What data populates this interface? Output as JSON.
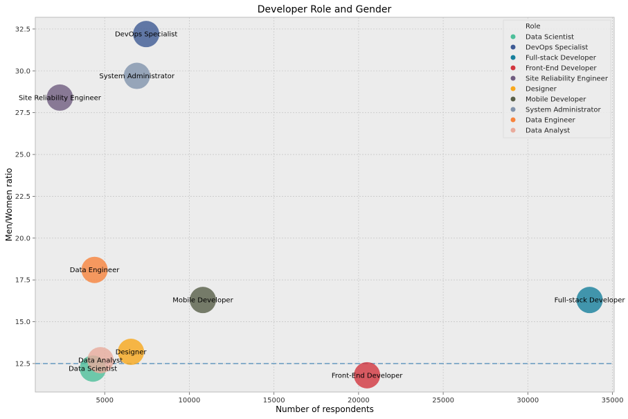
{
  "chart_data": {
    "type": "scatter",
    "title": "Developer Role and Gender",
    "xlabel": "Number of respondents",
    "ylabel": "Men/Women ratio",
    "xlim": [
      900,
      35100
    ],
    "ylim": [
      10.8,
      33.2
    ],
    "xticks": [
      5000,
      10000,
      15000,
      20000,
      25000,
      30000,
      35000
    ],
    "yticks": [
      12.5,
      15.0,
      17.5,
      20.0,
      22.5,
      25.0,
      27.5,
      30.0,
      32.5
    ],
    "grid": true,
    "reference_line": {
      "y": 12.5,
      "color": "#6f9fc2",
      "style": "dashed"
    },
    "legend": {
      "title": "Role",
      "position": "top-right"
    },
    "series": [
      {
        "name": "Data Scientist",
        "x": 4300,
        "y": 12.2,
        "color": "#4dbf9a",
        "label": "Data Scientist"
      },
      {
        "name": "DevOps Specialist",
        "x": 7450,
        "y": 32.2,
        "color": "#3d5a94",
        "label": "DevOps Specialist"
      },
      {
        "name": "Full-stack Developer",
        "x": 33650,
        "y": 16.3,
        "color": "#167f9c",
        "label": "Full-stack Developer"
      },
      {
        "name": "Front-End Developer",
        "x": 20500,
        "y": 11.8,
        "color": "#d2363e",
        "label": "Front-End Developer"
      },
      {
        "name": "Site Reliability Engineer",
        "x": 2350,
        "y": 28.4,
        "color": "#6f5c80",
        "label": "Site Reliability Engineer"
      },
      {
        "name": "Designer",
        "x": 6550,
        "y": 13.2,
        "color": "#f8a81c",
        "label": "Designer"
      },
      {
        "name": "Mobile Developer",
        "x": 10800,
        "y": 16.3,
        "color": "#585f49",
        "label": "Mobile Developer"
      },
      {
        "name": "System Administrator",
        "x": 6900,
        "y": 29.7,
        "color": "#8193ac",
        "label": "System Administrator"
      },
      {
        "name": "Data Engineer",
        "x": 4400,
        "y": 18.1,
        "color": "#f8833c",
        "label": "Data Engineer"
      },
      {
        "name": "Data Analyst",
        "x": 4750,
        "y": 12.7,
        "color": "#e9ab9c",
        "label": "Data Analyst"
      }
    ]
  }
}
